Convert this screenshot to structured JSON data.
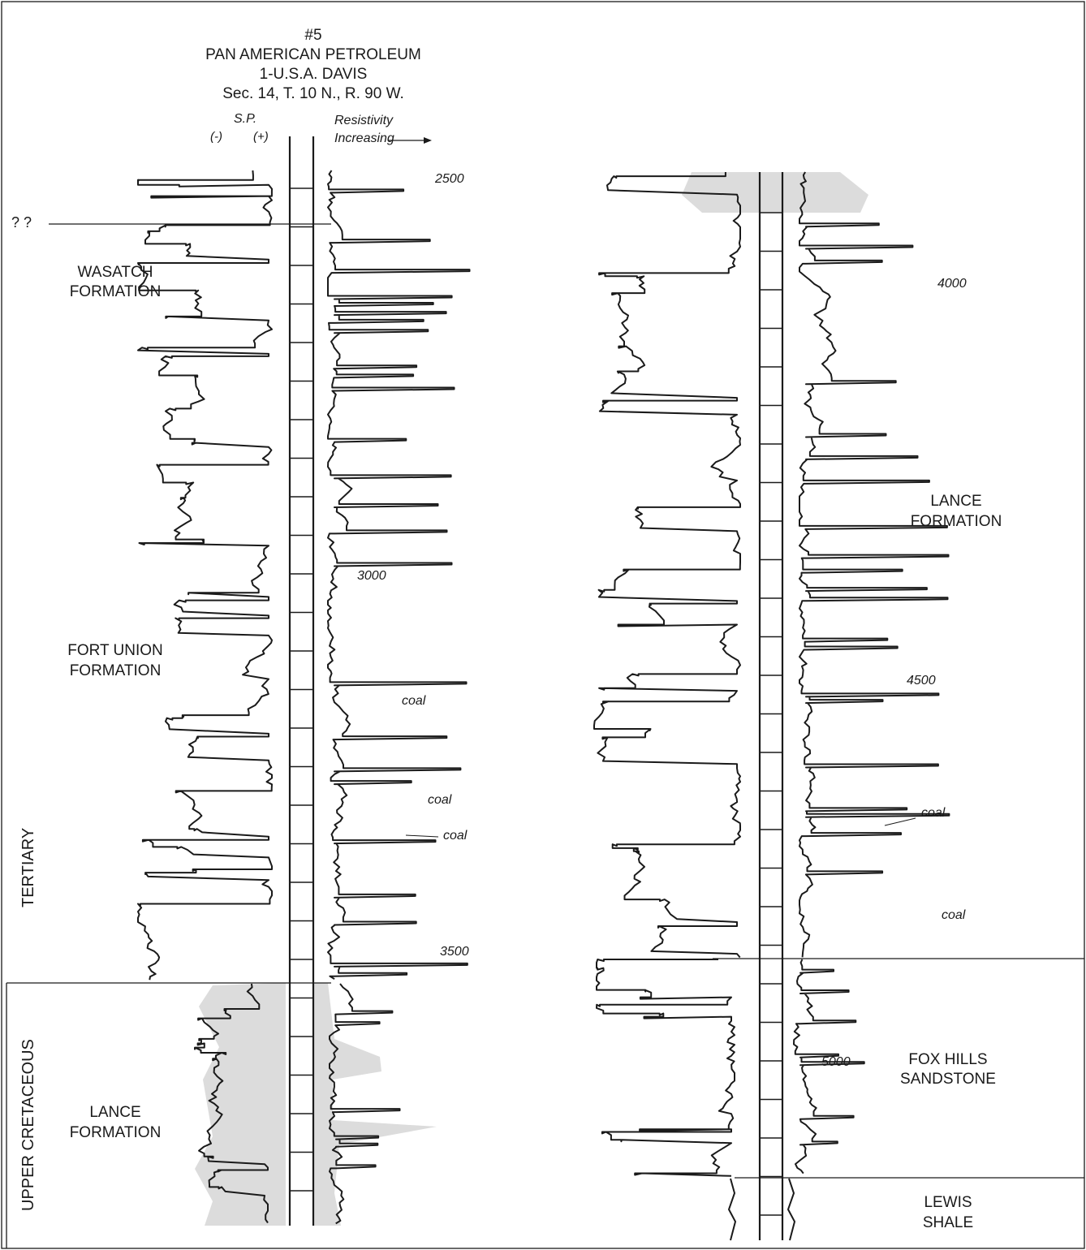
{
  "well": {
    "number": "#5",
    "operator": "PAN AMERICAN PETROLEUM",
    "name": "1-U.S.A. DAVIS",
    "location": "Sec. 14, T. 10 N., R. 90 W."
  },
  "log_headers": {
    "sp": "S.P.",
    "sp_neg": "(-)",
    "sp_pos": "(+)",
    "resistivity_1": "Resistivity",
    "resistivity_2": "Increasing"
  },
  "unknown_contact": "? ?",
  "formations": {
    "wasatch_1": "WASATCH",
    "wasatch_2": "FORMATION",
    "fort_union_1": "FORT UNION",
    "fort_union_2": "FORMATION",
    "lance_left_1": "LANCE",
    "lance_left_2": "FORMATION",
    "lance_right_1": "LANCE",
    "lance_right_2": "FORMATION",
    "fox_hills_1": "FOX HILLS",
    "fox_hills_2": "SANDSTONE",
    "lewis_1": "LEWIS",
    "lewis_2": "SHALE"
  },
  "ages": {
    "tertiary": "TERTIARY",
    "upper_cretaceous": "UPPER CRETACEOUS"
  },
  "depths": [
    "2500",
    "3000",
    "3500",
    "4000",
    "4500",
    "5000"
  ],
  "coal": "coal",
  "colors": {
    "line": "#1a1a1a",
    "shade": "#dcdcdc"
  }
}
